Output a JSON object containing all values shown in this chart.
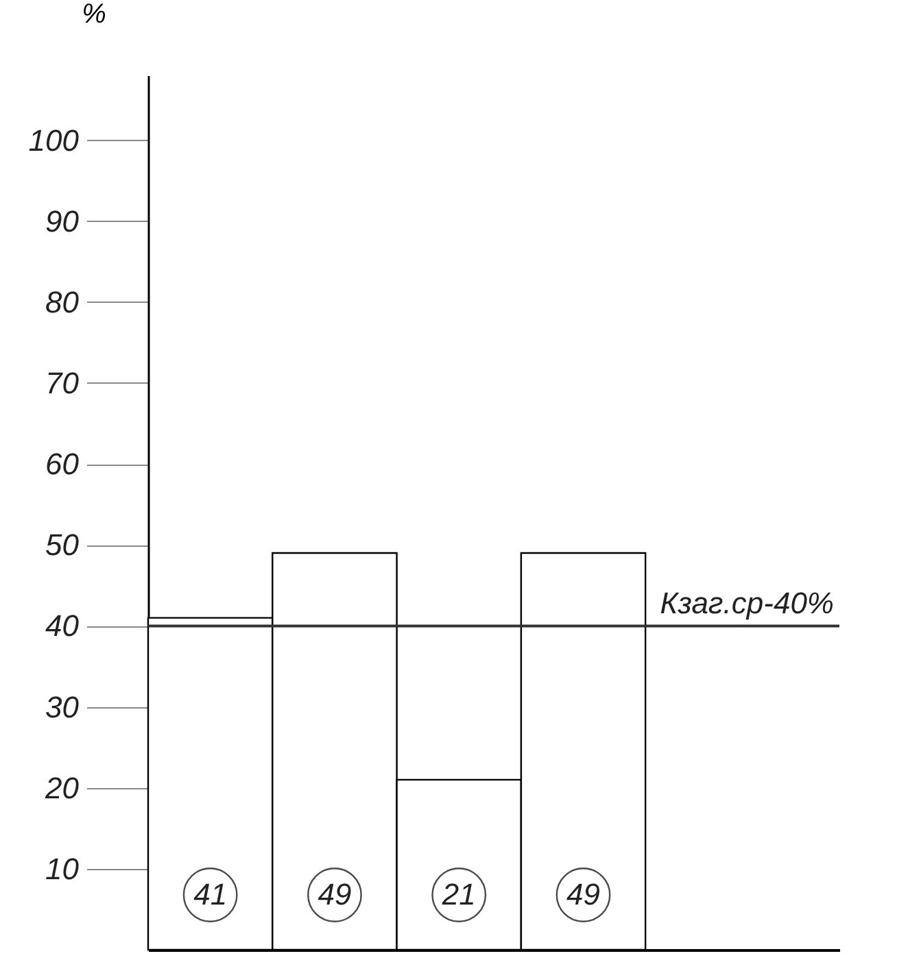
{
  "chart_data": {
    "type": "bar",
    "ylabel": "%",
    "categories": [
      null,
      null,
      null,
      null
    ],
    "values": [
      41,
      49,
      21,
      49
    ],
    "color": "#ffffff",
    "ylim": [
      0,
      108
    ],
    "yticks": [
      10,
      20,
      30,
      40,
      50,
      60,
      70,
      80,
      90,
      100
    ],
    "grid": false,
    "data_labels": true,
    "ref_lines": [
      {
        "axis": "y",
        "value": 40,
        "label": "Кзаг.ср-40%"
      }
    ]
  }
}
